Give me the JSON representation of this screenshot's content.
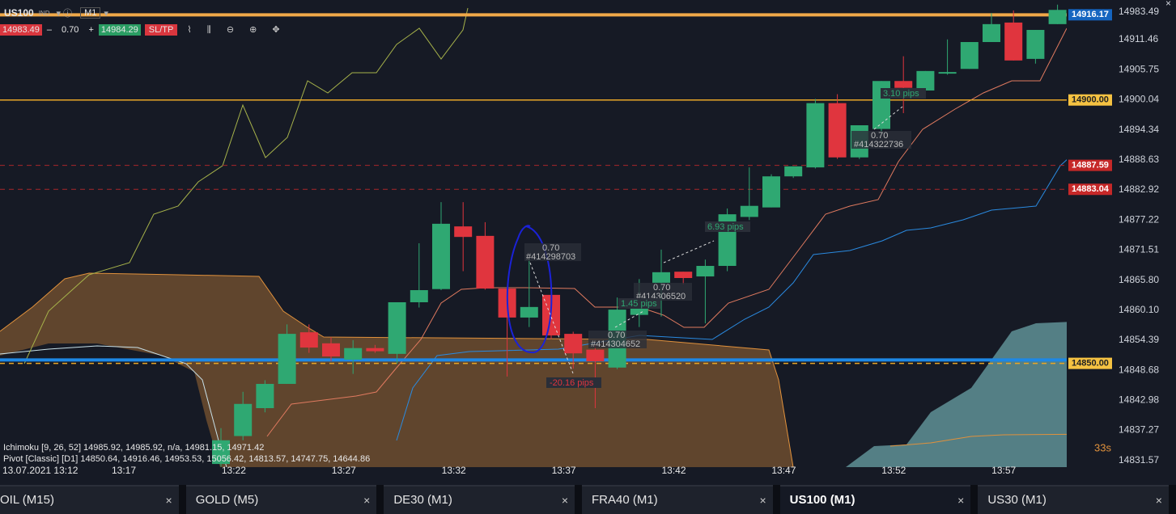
{
  "toolbar": {
    "symbol": "US100",
    "market": "IND",
    "timeframe": "M1",
    "sell_price": "14983.49",
    "lot_minus": "–",
    "lot_size": "0.70",
    "lot_plus": "+",
    "buy_price": "14984.29",
    "sl_tp": "SL/TP"
  },
  "chart": {
    "type": "candlestick",
    "ylim": [
      14830.3,
      14918.98
    ],
    "yticks": [
      14911.46,
      14905.75,
      14900.04,
      14894.34,
      14888.63,
      14882.92,
      14877.22,
      14871.51,
      {
        "value": 14865.8,
        "label": "14865.80"
      },
      {
        "value": 14860.1,
        "label": "14860.10"
      },
      14854.39,
      14848.68,
      14842.98,
      14837.27,
      14831.57
    ],
    "top_label": "14983.49",
    "candles": [
      {
        "open": 14830.9,
        "high": 14837.7,
        "low": 14830.4,
        "close": 14835.4
      },
      {
        "open": 14836.2,
        "high": 14844.6,
        "low": 14835.4,
        "close": 14842.3
      },
      {
        "open": 14841.5,
        "high": 14846.8,
        "low": 14840.7,
        "close": 14846.1
      },
      {
        "open": 14846.1,
        "high": 14857.4,
        "low": 14846.1,
        "close": 14855.6
      },
      {
        "open": 14855.9,
        "high": 14857.4,
        "low": 14852.0,
        "close": 14853.0
      },
      {
        "open": 14853.8,
        "high": 14855.0,
        "low": 14850.4,
        "close": 14851.3
      },
      {
        "open": 14850.7,
        "high": 14854.4,
        "low": 14848.0,
        "close": 14852.9
      },
      {
        "open": 14852.9,
        "high": 14853.5,
        "low": 14852.0,
        "close": 14852.3
      },
      {
        "open": 14851.8,
        "high": 14861.6,
        "low": 14849.96,
        "close": 14861.6
      },
      {
        "open": 14861.6,
        "high": 14872.8,
        "low": 14860.6,
        "close": 14863.9
      },
      {
        "open": 14864.1,
        "high": 14880.6,
        "low": 14863.9,
        "close": 14876.5
      },
      {
        "open": 14876.0,
        "high": 14880.6,
        "low": 14867.5,
        "close": 14874.0
      },
      {
        "open": 14874.2,
        "high": 14876.8,
        "low": 14864.0,
        "close": 14864.2
      },
      {
        "open": 14864.2,
        "high": 14864.2,
        "low": 14847.5,
        "close": 14858.7
      },
      {
        "open": 14858.7,
        "high": 14869.75,
        "low": 14856.9,
        "close": 14860.7
      },
      {
        "open": 14863.0,
        "high": 14863.0,
        "low": 14854.6,
        "close": 14855.3
      },
      {
        "open": 14855.6,
        "high": 14856.0,
        "low": 14849.0,
        "close": 14851.9
      },
      {
        "open": 14852.6,
        "high": 14853.5,
        "low": 14841.5,
        "close": 14850.4
      },
      {
        "open": 14849.2,
        "high": 14862.5,
        "low": 14848.9,
        "close": 14860.2
      },
      {
        "open": 14859.2,
        "high": 14866.0,
        "low": 14856.9,
        "close": 14860.7
      },
      {
        "open": 14865.3,
        "high": 14871.6,
        "low": 14858.9,
        "close": 14867.3
      },
      {
        "open": 14867.4,
        "high": 14867.4,
        "low": 14865.0,
        "close": 14866.2
      },
      {
        "open": 14866.5,
        "high": 14869.7,
        "low": 14857.6,
        "close": 14868.5
      },
      {
        "open": 14868.5,
        "high": 14879.4,
        "low": 14867.5,
        "close": 14878.3
      },
      {
        "open": 14877.8,
        "high": 14887.2,
        "low": 14877.2,
        "close": 14879.9
      },
      {
        "open": 14879.6,
        "high": 14885.9,
        "low": 14879.6,
        "close": 14885.5
      },
      {
        "open": 14885.5,
        "high": 14887.4,
        "low": 14885.2,
        "close": 14887.4
      },
      {
        "open": 14887.2,
        "high": 14900.2,
        "low": 14887.0,
        "close": 14899.4
      },
      {
        "open": 14899.4,
        "high": 14901.1,
        "low": 14888.8,
        "close": 14889.1
      },
      {
        "open": 14889.1,
        "high": 14895.2,
        "low": 14888.8,
        "close": 14895.2
      },
      {
        "open": 14894.5,
        "high": 14903.6,
        "low": 14893.8,
        "close": 14903.6
      },
      {
        "open": 14903.6,
        "high": 14908.3,
        "low": 14897.5,
        "close": 14902.3
      },
      {
        "open": 14901.8,
        "high": 14905.5,
        "low": 14901.5,
        "close": 14905.5
      },
      {
        "open": 14905.0,
        "high": 14911.5,
        "low": 14904.8,
        "close": 14905.3
      },
      {
        "open": 14905.9,
        "high": 14911.0,
        "low": 14905.9,
        "close": 14911.0
      },
      {
        "open": 14911.0,
        "high": 14916.5,
        "low": 14911.0,
        "close": 14914.4
      },
      {
        "open": 14914.7,
        "high": 14917.0,
        "low": 14907.5,
        "close": 14907.5
      },
      {
        "open": 14907.8,
        "high": 14913.3,
        "low": 14906.9,
        "close": 14913.3
      },
      {
        "open": 14914.4,
        "high": 14918.1,
        "low": 14914.4,
        "close": 14917.1
      }
    ],
    "up_color": "#2fa872",
    "down_color": "#e0353e",
    "price_lines": [
      {
        "value": 14916.17,
        "label": "14916.17",
        "color": "#f0a848",
        "width": 4,
        "dash": false,
        "label_bg": "#1565c0",
        "label_fg": "#ffffff"
      },
      {
        "value": 14900,
        "label": "14900.00",
        "color": "#e8a628",
        "width": 1.5,
        "dash": false,
        "label_bg": "#f5c242",
        "label_fg": "#222222"
      },
      {
        "value": 14887.59,
        "label": "14887.59",
        "color": "#a8262a",
        "width": 1,
        "dash": true,
        "label_bg": "#c62828",
        "label_fg": "#ffffff"
      },
      {
        "value": 14883.04,
        "label": "14883.04",
        "color": "#a8262a",
        "width": 1,
        "dash": true,
        "label_bg": "#c62828",
        "label_fg": "#ffffff"
      },
      {
        "value": 14850,
        "label": "14850.00",
        "color": "#e8a628",
        "width": 1.5,
        "dash": true,
        "label_bg": "#f5c242",
        "label_fg": "#222222"
      }
    ],
    "pivot_line": {
      "value": 14850.64,
      "color": "#1e88e5"
    },
    "xlabels": [
      "13.07.2021 13:12",
      "13:17",
      "13:22",
      "13:27",
      "13:32",
      "13:37",
      "13:42",
      "13:47",
      "13:52",
      "13:57"
    ],
    "trades": [
      {
        "lot": "0.70",
        "id": "#414298703"
      },
      {
        "lot": "0.70",
        "id": "#414304652"
      },
      {
        "lot": "0.70",
        "id": "#414306520"
      },
      {
        "lot": "0.70",
        "id": "#414322736"
      }
    ],
    "pips": [
      "-20.16 pips",
      "1.45 pips",
      "6.93 pips",
      "3.10 pips"
    ],
    "indicators": [
      "Ichimoku [9, 26, 52] 14985.92, 14985.92, n/a, 14981.15, 14971.42",
      "Pivot [Classic] [D1] 14850.64, 14916.46, 14953.53, 15056.42, 14813.57, 14747.75, 14644.86"
    ],
    "countdown": "33s"
  },
  "tabs": [
    "OIL (M15)",
    "GOLD (M5)",
    "DE30 (M1)",
    "FRA40 (M1)",
    "US100 (M1)",
    "US30 (M1)"
  ]
}
